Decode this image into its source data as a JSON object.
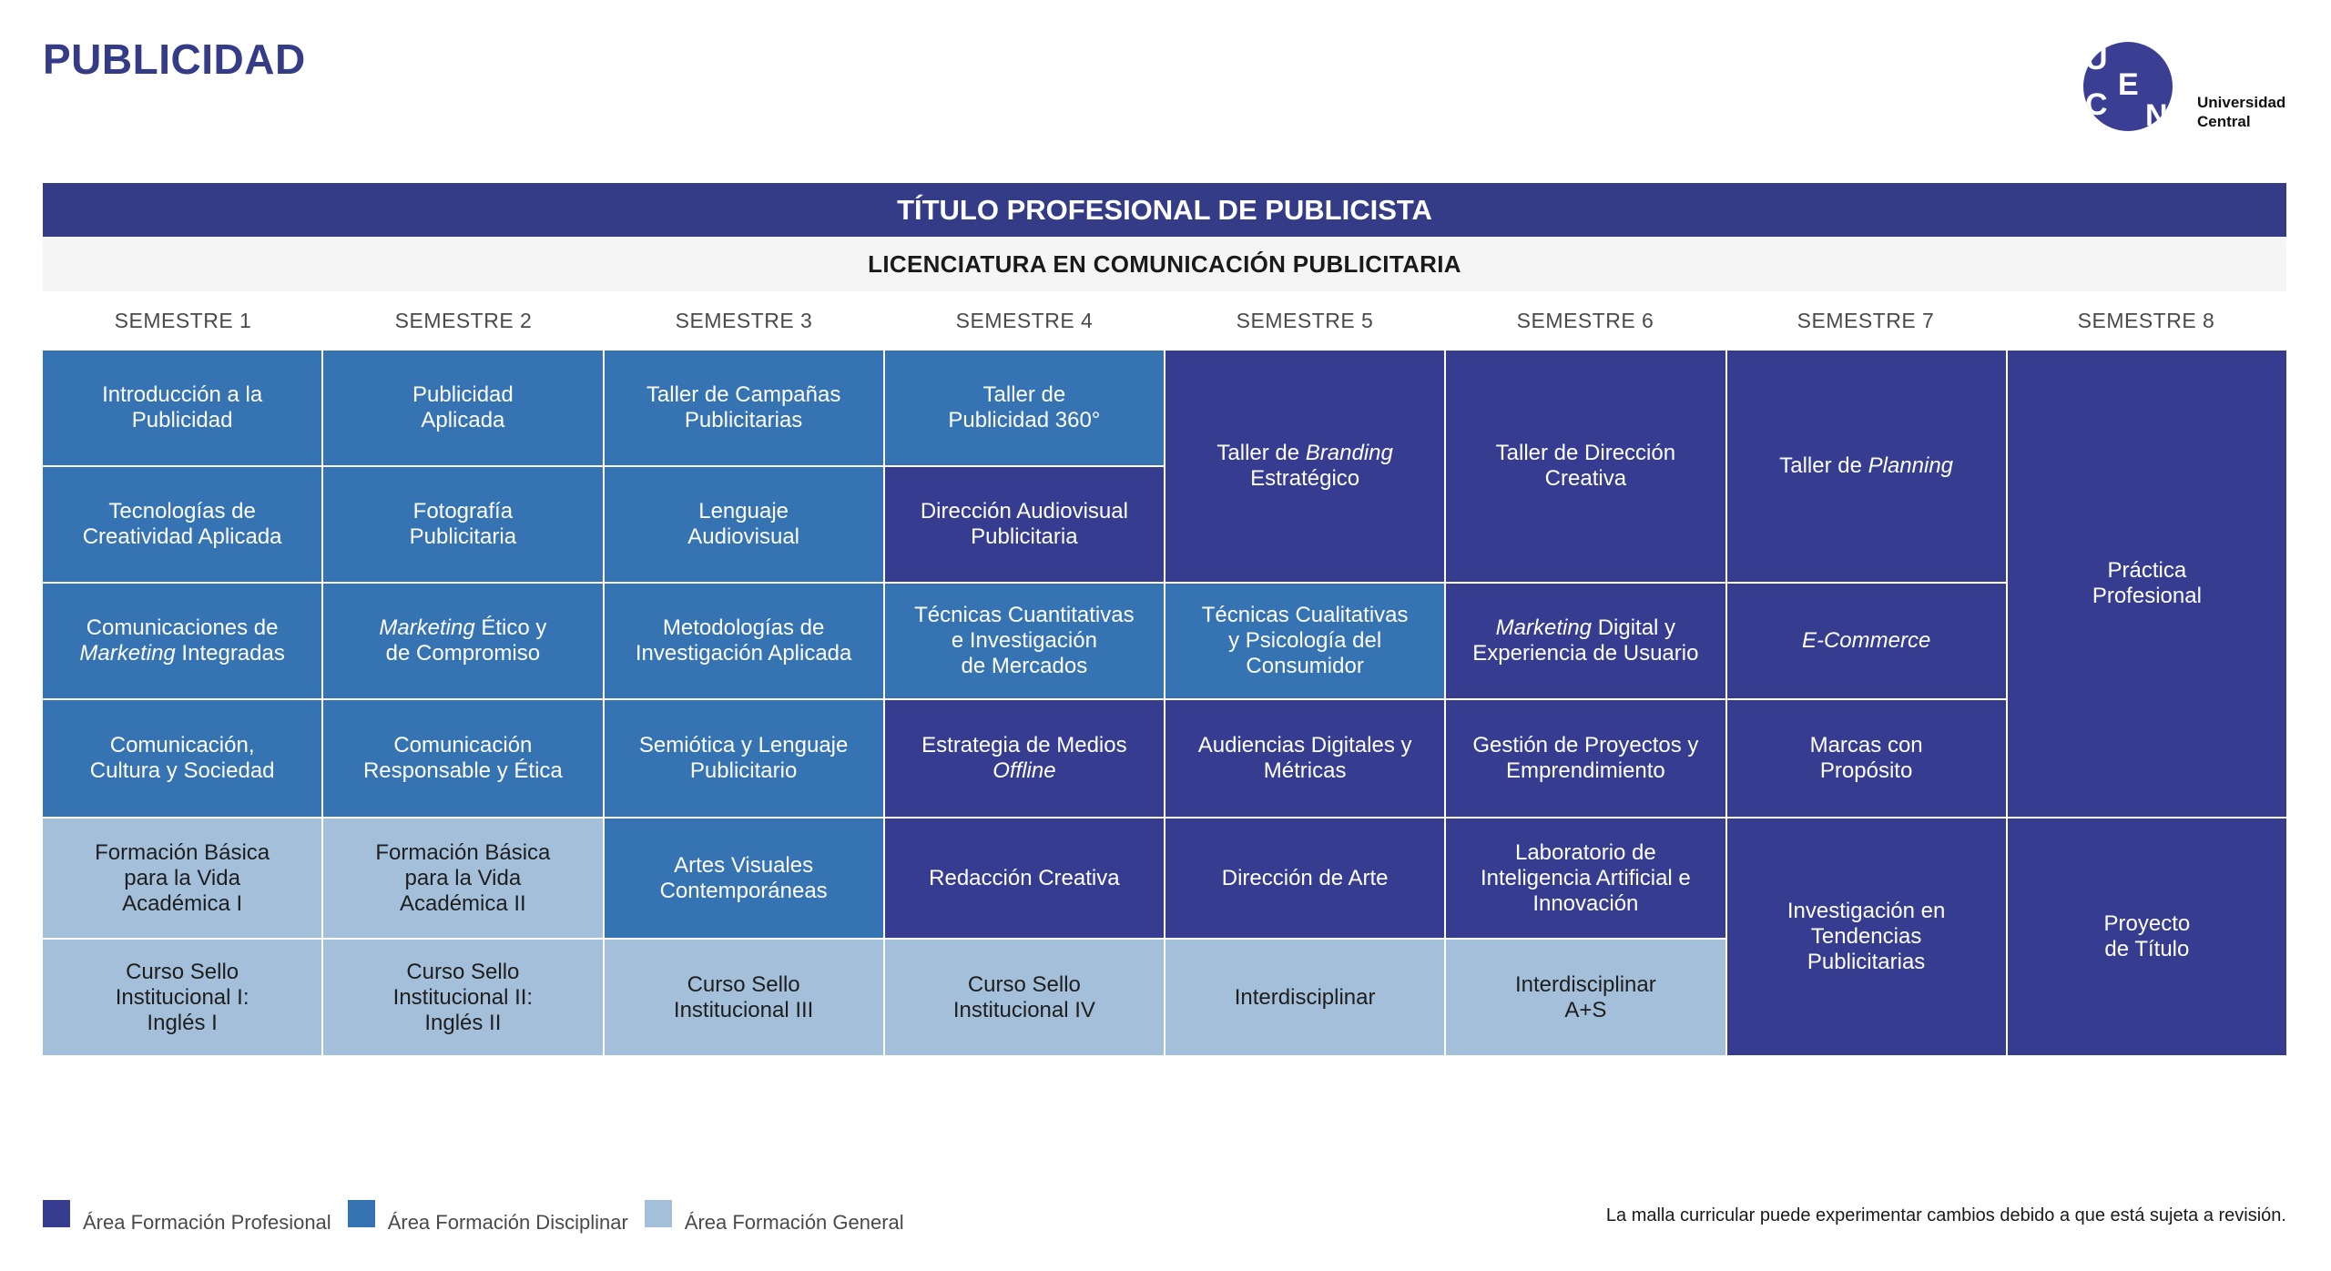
{
  "page_title": "PUBLICIDAD",
  "logo": {
    "letters": [
      "U",
      "C",
      "E",
      "N"
    ],
    "name_line1": "Universidad",
    "name_line2": "Central",
    "color": "#3a3f93"
  },
  "degree_title": "TÍTULO PROFESIONAL DE PUBLICISTA",
  "licenciatura": "LICENCIATURA EN COMUNICACIÓN PUBLICITARIA",
  "colors": {
    "profesional": "#363d91",
    "disciplinar": "#3573b2",
    "general": "#a4bfd9"
  },
  "semesters": [
    "SEMESTRE 1",
    "SEMESTRE 2",
    "SEMESTRE 3",
    "SEMESTRE 4",
    "SEMESTRE 5",
    "SEMESTRE 6",
    "SEMESTRE 7",
    "SEMESTRE 8"
  ],
  "courses": [
    {
      "semester": 1,
      "row": 1,
      "span": 1,
      "area": "disciplinar",
      "parts": [
        {
          "text": "Introducción a la\nPublicidad"
        }
      ]
    },
    {
      "semester": 1,
      "row": 2,
      "span": 1,
      "area": "disciplinar",
      "parts": [
        {
          "text": "Tecnologías de\nCreatividad Aplicada"
        }
      ]
    },
    {
      "semester": 1,
      "row": 3,
      "span": 1,
      "area": "disciplinar",
      "parts": [
        {
          "text": "Comunicaciones de\n"
        },
        {
          "text": "Marketing",
          "italic": true
        },
        {
          "text": " Integradas"
        }
      ]
    },
    {
      "semester": 1,
      "row": 4,
      "span": 1,
      "area": "disciplinar",
      "parts": [
        {
          "text": "Comunicación,\nCultura y Sociedad"
        }
      ]
    },
    {
      "semester": 1,
      "row": 5,
      "span": 1,
      "area": "general",
      "parts": [
        {
          "text": "Formación Básica\npara la Vida\nAcadémica I"
        }
      ]
    },
    {
      "semester": 1,
      "row": 6,
      "span": 1,
      "area": "general",
      "parts": [
        {
          "text": "Curso Sello\nInstitucional I:\nInglés I"
        }
      ]
    },
    {
      "semester": 2,
      "row": 1,
      "span": 1,
      "area": "disciplinar",
      "parts": [
        {
          "text": "Publicidad\nAplicada"
        }
      ]
    },
    {
      "semester": 2,
      "row": 2,
      "span": 1,
      "area": "disciplinar",
      "parts": [
        {
          "text": "Fotografía\nPublicitaria"
        }
      ]
    },
    {
      "semester": 2,
      "row": 3,
      "span": 1,
      "area": "disciplinar",
      "parts": [
        {
          "text": "Marketing",
          "italic": true
        },
        {
          "text": " Ético y\nde Compromiso"
        }
      ]
    },
    {
      "semester": 2,
      "row": 4,
      "span": 1,
      "area": "disciplinar",
      "parts": [
        {
          "text": "Comunicación\nResponsable y Ética"
        }
      ]
    },
    {
      "semester": 2,
      "row": 5,
      "span": 1,
      "area": "general",
      "parts": [
        {
          "text": "Formación Básica\npara la Vida\nAcadémica II"
        }
      ]
    },
    {
      "semester": 2,
      "row": 6,
      "span": 1,
      "area": "general",
      "parts": [
        {
          "text": "Curso Sello\nInstitucional II:\nInglés II"
        }
      ]
    },
    {
      "semester": 3,
      "row": 1,
      "span": 1,
      "area": "disciplinar",
      "parts": [
        {
          "text": "Taller de Campañas\nPublicitarias"
        }
      ]
    },
    {
      "semester": 3,
      "row": 2,
      "span": 1,
      "area": "disciplinar",
      "parts": [
        {
          "text": "Lenguaje\nAudiovisual"
        }
      ]
    },
    {
      "semester": 3,
      "row": 3,
      "span": 1,
      "area": "disciplinar",
      "parts": [
        {
          "text": "Metodologías de\nInvestigación Aplicada"
        }
      ]
    },
    {
      "semester": 3,
      "row": 4,
      "span": 1,
      "area": "disciplinar",
      "parts": [
        {
          "text": "Semiótica y Lenguaje\nPublicitario"
        }
      ]
    },
    {
      "semester": 3,
      "row": 5,
      "span": 1,
      "area": "disciplinar",
      "parts": [
        {
          "text": "Artes Visuales\nContemporáneas"
        }
      ]
    },
    {
      "semester": 3,
      "row": 6,
      "span": 1,
      "area": "general",
      "parts": [
        {
          "text": "Curso Sello\nInstitucional III"
        }
      ]
    },
    {
      "semester": 4,
      "row": 1,
      "span": 1,
      "area": "disciplinar",
      "parts": [
        {
          "text": "Taller de\nPublicidad 360°"
        }
      ]
    },
    {
      "semester": 4,
      "row": 2,
      "span": 1,
      "area": "profesional",
      "parts": [
        {
          "text": "Dirección Audiovisual\nPublicitaria"
        }
      ]
    },
    {
      "semester": 4,
      "row": 3,
      "span": 1,
      "area": "disciplinar",
      "parts": [
        {
          "text": "Técnicas Cuantitativas\ne Investigación\nde Mercados"
        }
      ]
    },
    {
      "semester": 4,
      "row": 4,
      "span": 1,
      "area": "profesional",
      "parts": [
        {
          "text": "Estrategia de Medios\n"
        },
        {
          "text": "Offline",
          "italic": true
        }
      ]
    },
    {
      "semester": 4,
      "row": 5,
      "span": 1,
      "area": "profesional",
      "parts": [
        {
          "text": "Redacción Creativa"
        }
      ]
    },
    {
      "semester": 4,
      "row": 6,
      "span": 1,
      "area": "general",
      "parts": [
        {
          "text": "Curso Sello\nInstitucional IV"
        }
      ]
    },
    {
      "semester": 5,
      "row": 1,
      "span": 2,
      "area": "profesional",
      "parts": [
        {
          "text": "Taller de "
        },
        {
          "text": "Branding",
          "italic": true
        },
        {
          "text": "\nEstratégico"
        }
      ]
    },
    {
      "semester": 5,
      "row": 3,
      "span": 1,
      "area": "disciplinar",
      "parts": [
        {
          "text": "Técnicas Cualitativas\ny Psicología del\nConsumidor"
        }
      ]
    },
    {
      "semester": 5,
      "row": 4,
      "span": 1,
      "area": "profesional",
      "parts": [
        {
          "text": "Audiencias Digitales y\nMétricas"
        }
      ]
    },
    {
      "semester": 5,
      "row": 5,
      "span": 1,
      "area": "profesional",
      "parts": [
        {
          "text": "Dirección de Arte"
        }
      ]
    },
    {
      "semester": 5,
      "row": 6,
      "span": 1,
      "area": "general",
      "parts": [
        {
          "text": "Interdisciplinar"
        }
      ]
    },
    {
      "semester": 6,
      "row": 1,
      "span": 2,
      "area": "profesional",
      "parts": [
        {
          "text": "Taller de Dirección\nCreativa"
        }
      ]
    },
    {
      "semester": 6,
      "row": 3,
      "span": 1,
      "area": "profesional",
      "parts": [
        {
          "text": "Marketing",
          "italic": true
        },
        {
          "text": " Digital y\nExperiencia de Usuario"
        }
      ]
    },
    {
      "semester": 6,
      "row": 4,
      "span": 1,
      "area": "profesional",
      "parts": [
        {
          "text": "Gestión de Proyectos y\nEmprendimiento"
        }
      ]
    },
    {
      "semester": 6,
      "row": 5,
      "span": 1,
      "area": "profesional",
      "parts": [
        {
          "text": "Laboratorio de\nInteligencia Artificial e\nInnovación"
        }
      ]
    },
    {
      "semester": 6,
      "row": 6,
      "span": 1,
      "area": "general",
      "parts": [
        {
          "text": "Interdisciplinar\nA+S"
        }
      ]
    },
    {
      "semester": 7,
      "row": 1,
      "span": 2,
      "area": "profesional",
      "parts": [
        {
          "text": "Taller de "
        },
        {
          "text": "Planning",
          "italic": true
        }
      ]
    },
    {
      "semester": 7,
      "row": 3,
      "span": 1,
      "area": "profesional",
      "parts": [
        {
          "text": "E-Commerce",
          "italic": true
        }
      ]
    },
    {
      "semester": 7,
      "row": 4,
      "span": 1,
      "area": "profesional",
      "parts": [
        {
          "text": "Marcas con\nPropósito"
        }
      ]
    },
    {
      "semester": 7,
      "row": 5,
      "span": 2,
      "area": "profesional",
      "parts": [
        {
          "text": "Investigación en\nTendencias\nPublicitarias"
        }
      ]
    },
    {
      "semester": 8,
      "row": 1,
      "span": 4,
      "area": "profesional",
      "parts": [
        {
          "text": "Práctica\nProfesional"
        }
      ]
    },
    {
      "semester": 8,
      "row": 5,
      "span": 2,
      "area": "profesional",
      "parts": [
        {
          "text": "Proyecto\nde Título"
        }
      ]
    }
  ],
  "legend": [
    {
      "label": "Área Formación Profesional",
      "area": "profesional"
    },
    {
      "label": "Área Formación Disciplinar",
      "area": "disciplinar"
    },
    {
      "label": "Área Formación General",
      "area": "general"
    }
  ],
  "footnote": "La malla curricular puede experimentar cambios debido a que está sujeta a revisión."
}
